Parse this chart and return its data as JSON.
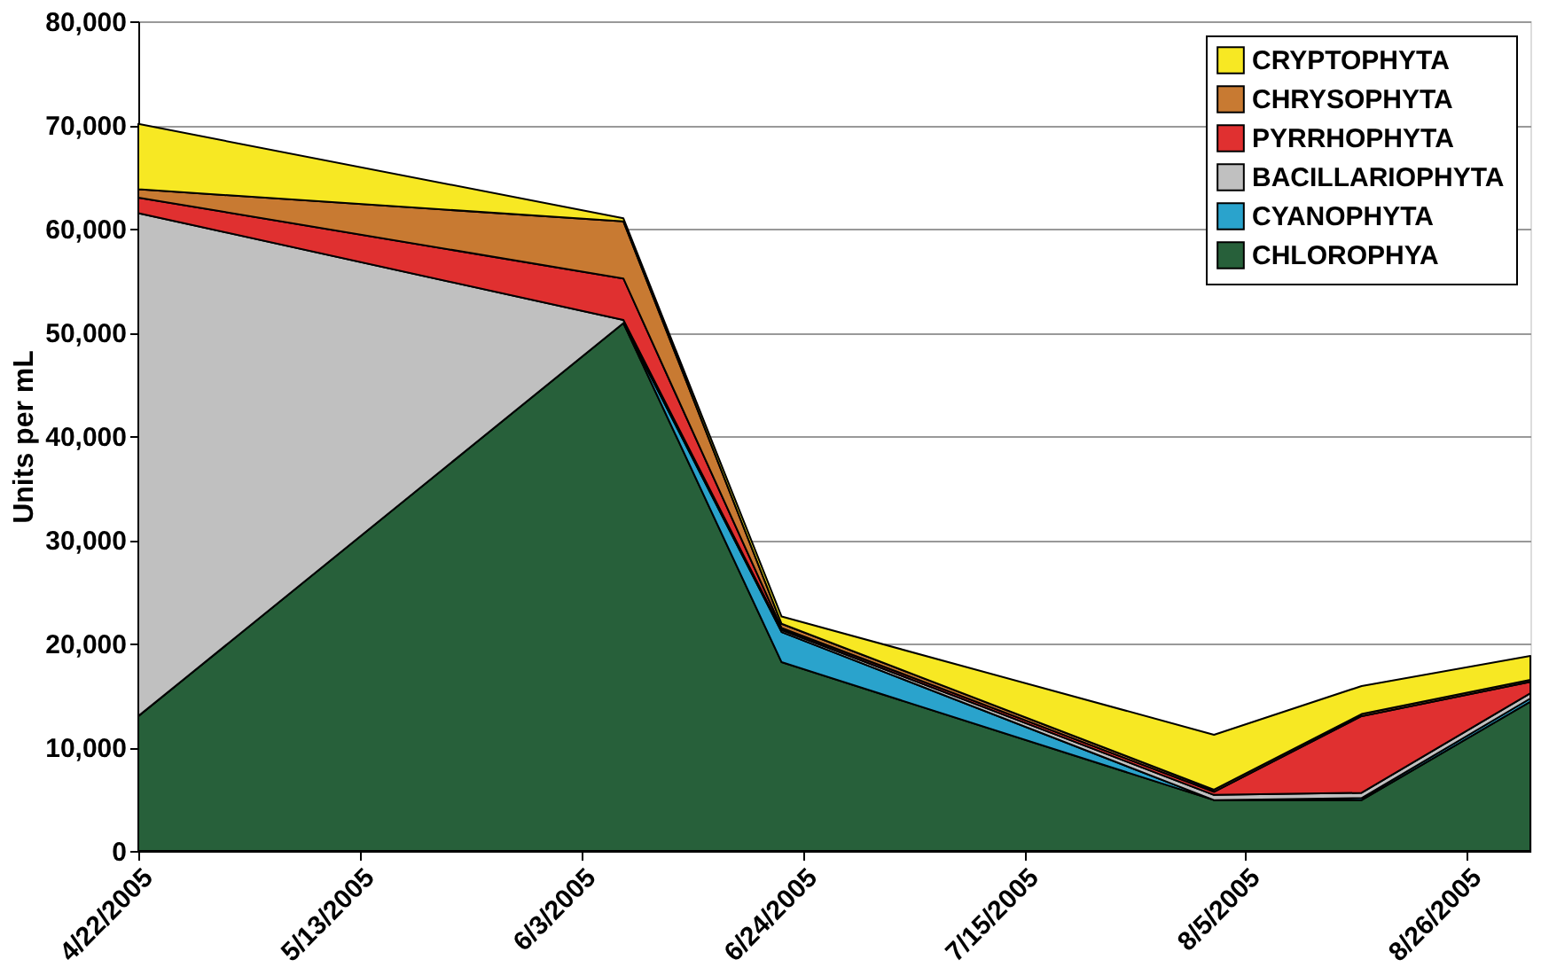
{
  "chart_data": {
    "type": "area",
    "stacked": true,
    "ylabel": "Units per mL",
    "x": [
      "2005-04-22",
      "2005-06-07",
      "2005-06-22",
      "2005-08-02",
      "2005-08-16",
      "2005-09-01"
    ],
    "series": [
      {
        "name": "CHLOROPHYA",
        "color": "#27603a",
        "values": [
          13000,
          50900,
          18200,
          4900,
          4900,
          14400
        ]
      },
      {
        "name": "CYANOPHYTA",
        "color": "#2aa3cc",
        "values": [
          0,
          0,
          2900,
          0,
          200,
          300
        ]
      },
      {
        "name": "BACILLARIOPHYTA",
        "color": "#c0c0c0",
        "values": [
          48500,
          300,
          200,
          500,
          500,
          500
        ]
      },
      {
        "name": "PYRRHOPHYTA",
        "color": "#e03030",
        "values": [
          1500,
          4000,
          200,
          300,
          7400,
          1100
        ]
      },
      {
        "name": "CHRYSOPHYTA",
        "color": "#c87a32",
        "values": [
          800,
          5500,
          400,
          200,
          200,
          200
        ]
      },
      {
        "name": "CRYPTOPHYTA",
        "color": "#f7e823",
        "values": [
          6300,
          300,
          700,
          5300,
          2700,
          2300
        ]
      }
    ],
    "xlim": [
      "2005-04-22",
      "2005-09-01"
    ],
    "xticks": [
      {
        "value": "2005-04-22",
        "label": "4/22/2005"
      },
      {
        "value": "2005-05-13",
        "label": "5/13/2005"
      },
      {
        "value": "2005-06-03",
        "label": "6/3/2005"
      },
      {
        "value": "2005-06-24",
        "label": "6/24/2005"
      },
      {
        "value": "2005-07-15",
        "label": "7/15/2005"
      },
      {
        "value": "2005-08-05",
        "label": "8/5/2005"
      },
      {
        "value": "2005-08-26",
        "label": "8/26/2005"
      }
    ],
    "ylim": [
      0,
      80000
    ],
    "yticks": [
      {
        "value": 0,
        "label": "0"
      },
      {
        "value": 10000,
        "label": "10,000"
      },
      {
        "value": 20000,
        "label": "20,000"
      },
      {
        "value": 30000,
        "label": "30,000"
      },
      {
        "value": 40000,
        "label": "40,000"
      },
      {
        "value": 50000,
        "label": "50,000"
      },
      {
        "value": 60000,
        "label": "60,000"
      },
      {
        "value": 70000,
        "label": "70,000"
      },
      {
        "value": 80000,
        "label": "80,000"
      }
    ],
    "grid": "y",
    "legend": "top right"
  }
}
